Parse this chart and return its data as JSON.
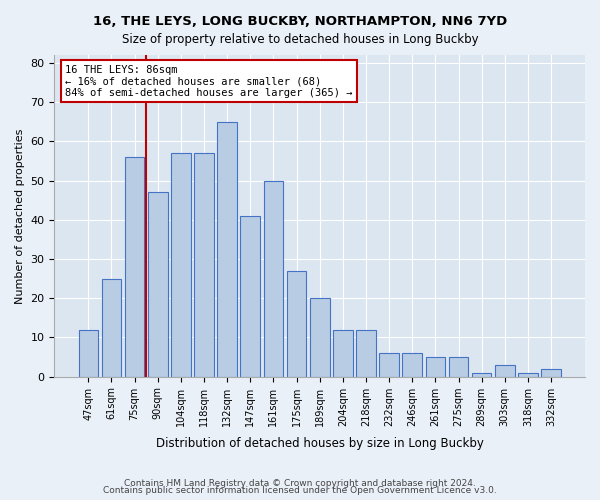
{
  "title1": "16, THE LEYS, LONG BUCKBY, NORTHAMPTON, NN6 7YD",
  "title2": "Size of property relative to detached houses in Long Buckby",
  "xlabel": "Distribution of detached houses by size in Long Buckby",
  "ylabel": "Number of detached properties",
  "categories": [
    "47sqm",
    "61sqm",
    "75sqm",
    "90sqm",
    "104sqm",
    "118sqm",
    "132sqm",
    "147sqm",
    "161sqm",
    "175sqm",
    "189sqm",
    "204sqm",
    "218sqm",
    "232sqm",
    "246sqm",
    "261sqm",
    "275sqm",
    "289sqm",
    "303sqm",
    "318sqm",
    "332sqm"
  ],
  "bar_values": [
    12,
    25,
    56,
    47,
    57,
    57,
    65,
    41,
    50,
    27,
    20,
    12,
    12,
    6,
    6,
    5,
    5,
    1,
    3,
    1,
    2
  ],
  "bar_color": "#b8cce4",
  "bar_edge_color": "#4472c4",
  "vline_color": "#c00000",
  "annotation_text": "16 THE LEYS: 86sqm\n← 16% of detached houses are smaller (68)\n84% of semi-detached houses are larger (365) →",
  "annotation_box_color": "#ffffff",
  "annotation_border_color": "#c00000",
  "ylim": [
    0,
    82
  ],
  "yticks": [
    0,
    10,
    20,
    30,
    40,
    50,
    60,
    70,
    80
  ],
  "footer1": "Contains HM Land Registry data © Crown copyright and database right 2024.",
  "footer2": "Contains public sector information licensed under the Open Government Licence v3.0.",
  "bg_color": "#eaf0f8",
  "plot_bg_color": "#dce6f1"
}
